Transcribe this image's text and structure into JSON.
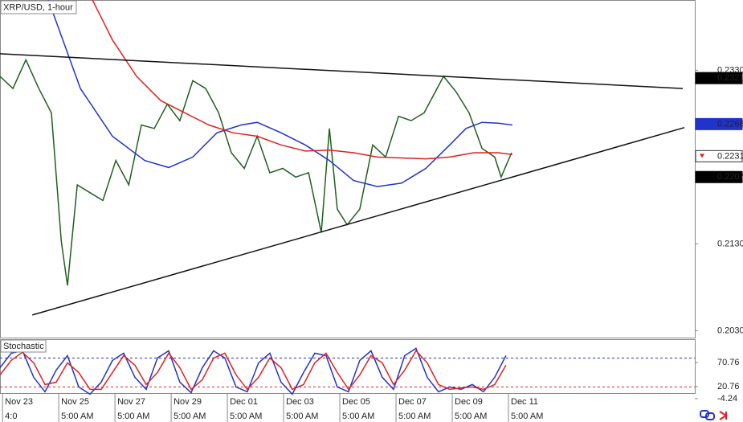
{
  "chart_data": [
    {
      "type": "line",
      "title": "XRP/USD, 1-hour",
      "xlim": [
        -0.09,
        24.63
      ],
      "xticks": [
        {
          "value": 0,
          "label": "Nov 23"
        },
        {
          "value": 2,
          "label": "Nov 25"
        },
        {
          "value": 4,
          "label": "Nov 27"
        },
        {
          "value": 6,
          "label": "Nov 29"
        },
        {
          "value": 8,
          "label": "Dec 01"
        },
        {
          "value": 10,
          "label": "Dec 03"
        },
        {
          "value": 12,
          "label": "Dec 05"
        },
        {
          "value": 14,
          "label": "Dec 07"
        },
        {
          "value": 16,
          "label": "Dec 09"
        },
        {
          "value": 18,
          "label": "Dec 11"
        }
      ],
      "x_sublabels": [
        "4:0",
        "5:00 AM",
        "5:00 AM",
        "5:00 AM",
        "5:00 AM",
        "5:00 AM",
        "5:00 AM",
        "5:00 AM",
        "5:00 AM",
        "5:00 AM"
      ],
      "ylim": [
        0.2022,
        0.2411
      ],
      "yticks": [
        {
          "value": 0.233,
          "label": "0.2330"
        },
        {
          "value": 0.213,
          "label": "0.2130"
        },
        {
          "value": 0.203,
          "label": "0.2030"
        }
      ],
      "series": [
        {
          "color": "#1f5f1f",
          "x": [
            -0.09,
            0.37,
            0.83,
            1.29,
            1.74,
            2.09,
            2.31,
            2.66,
            3.11,
            3.57,
            4.03,
            4.49,
            4.94,
            5.4,
            5.86,
            6.31,
            6.77,
            7.23,
            7.69,
            8.14,
            8.6,
            9.06,
            9.51,
            9.97,
            10.43,
            10.89,
            11.34,
            11.63,
            11.91,
            12.26,
            12.71,
            13.17,
            13.63,
            14.09,
            14.54,
            15,
            15.46,
            15.69,
            16.14,
            16.6,
            17.06,
            17.51,
            17.74,
            18.11
          ],
          "values": [
            0.2323,
            0.2309,
            0.2342,
            0.2309,
            0.2281,
            0.2133,
            0.2082,
            0.2198,
            0.2189,
            0.218,
            0.2226,
            0.2198,
            0.2267,
            0.2263,
            0.2291,
            0.2272,
            0.2318,
            0.2309,
            0.2281,
            0.2235,
            0.2217,
            0.2254,
            0.2212,
            0.2217,
            0.2207,
            0.2212,
            0.2143,
            0.2263,
            0.217,
            0.2152,
            0.217,
            0.2244,
            0.223,
            0.2277,
            0.2272,
            0.2281,
            0.2309,
            0.2323,
            0.2305,
            0.2281,
            0.224,
            0.223,
            0.2207,
            0.2235
          ]
        },
        {
          "color": "#2233cc",
          "x": [
            1.63,
            2.77,
            3.91,
            5.06,
            5.91,
            6.77,
            7.63,
            8.49,
            9.06,
            9.91,
            10.77,
            11.63,
            12.49,
            13.34,
            14.2,
            15.06,
            15.91,
            16.49,
            17.06,
            17.63,
            18.14
          ],
          "values": [
            0.2411,
            0.2309,
            0.2254,
            0.2226,
            0.2218,
            0.223,
            0.2258,
            0.2267,
            0.227,
            0.2258,
            0.2244,
            0.2226,
            0.2203,
            0.2196,
            0.22,
            0.2217,
            0.2244,
            0.2263,
            0.227,
            0.2269,
            0.2267
          ]
        },
        {
          "color": "#e02020",
          "x": [
            3.2,
            3.91,
            4.77,
            5.63,
            6.49,
            7.34,
            8.2,
            9.06,
            9.91,
            10.77,
            11.63,
            12.49,
            13.34,
            14.2,
            15.06,
            15.91,
            16.77,
            17.63,
            18.14
          ],
          "values": [
            0.2411,
            0.2365,
            0.2323,
            0.2295,
            0.2281,
            0.2267,
            0.2258,
            0.2254,
            0.2244,
            0.2237,
            0.2238,
            0.2235,
            0.223,
            0.2229,
            0.2228,
            0.223,
            0.2235,
            0.2235,
            0.2233
          ]
        },
        {
          "color": "#111111",
          "x": [
            -0.09,
            24.2
          ],
          "values": [
            0.2349,
            0.2309
          ]
        },
        {
          "color": "#111111",
          "x": [
            1.06,
            24.26
          ],
          "values": [
            0.2048,
            0.2264
          ]
        }
      ],
      "price_labels": [
        {
          "value": 0.2321,
          "color": "#000000",
          "text_color": "#ffffff"
        },
        {
          "value": 0.2268,
          "color": "#2233cc",
          "text_color": "#ffffff"
        },
        {
          "value": 0.2231,
          "color": "#ffffff",
          "text_color": "#000000"
        },
        {
          "value": 0.2207,
          "color": "#000000",
          "text_color": "#ffffff"
        }
      ]
    },
    {
      "type": "line",
      "title": "Stochastic",
      "ylim": [
        -6,
        119
      ],
      "yticks": [
        70.76,
        20.76,
        -4.24
      ],
      "levels": [
        80,
        20
      ],
      "level_colors": [
        "#2233cc",
        "#e02020"
      ],
      "series": [
        {
          "color": "#2233cc",
          "x": [
            -0.09,
            0.31,
            0.71,
            1.11,
            1.51,
            1.91,
            2.31,
            2.71,
            3.11,
            3.51,
            3.91,
            4.31,
            4.71,
            5.11,
            5.51,
            5.91,
            6.31,
            6.71,
            7.11,
            7.51,
            7.91,
            8.31,
            8.71,
            9.11,
            9.51,
            9.91,
            10.31,
            10.71,
            11.11,
            11.51,
            11.91,
            12.31,
            12.71,
            13.11,
            13.51,
            13.91,
            14.31,
            14.71,
            15.11,
            15.51,
            15.91,
            16.31,
            16.71,
            17.11,
            17.51,
            17.91
          ],
          "values": [
            60,
            90,
            95,
            40,
            10,
            55,
            85,
            20,
            5,
            30,
            75,
            90,
            40,
            15,
            80,
            95,
            30,
            8,
            60,
            95,
            80,
            20,
            10,
            70,
            90,
            30,
            5,
            50,
            90,
            85,
            20,
            10,
            75,
            95,
            40,
            15,
            85,
            100,
            40,
            10,
            20,
            15,
            25,
            10,
            40,
            85
          ]
        },
        {
          "color": "#e02020",
          "x": [
            -0.09,
            0.31,
            0.71,
            1.11,
            1.51,
            1.91,
            2.31,
            2.71,
            3.11,
            3.51,
            3.91,
            4.31,
            4.71,
            5.11,
            5.51,
            5.91,
            6.31,
            6.71,
            7.11,
            7.51,
            7.91,
            8.31,
            8.71,
            9.11,
            9.51,
            9.91,
            10.31,
            10.71,
            11.11,
            11.51,
            11.91,
            12.31,
            12.71,
            13.11,
            13.51,
            13.91,
            14.31,
            14.71,
            15.11,
            15.51,
            15.91,
            16.31,
            16.71,
            17.11,
            17.51,
            17.91
          ],
          "values": [
            45,
            75,
            92,
            70,
            25,
            30,
            70,
            50,
            15,
            15,
            50,
            85,
            65,
            25,
            50,
            90,
            60,
            15,
            35,
            80,
            90,
            45,
            15,
            40,
            80,
            60,
            15,
            25,
            70,
            90,
            50,
            15,
            45,
            85,
            70,
            25,
            55,
            95,
            70,
            25,
            15,
            18,
            20,
            15,
            25,
            65
          ]
        }
      ]
    }
  ]
}
